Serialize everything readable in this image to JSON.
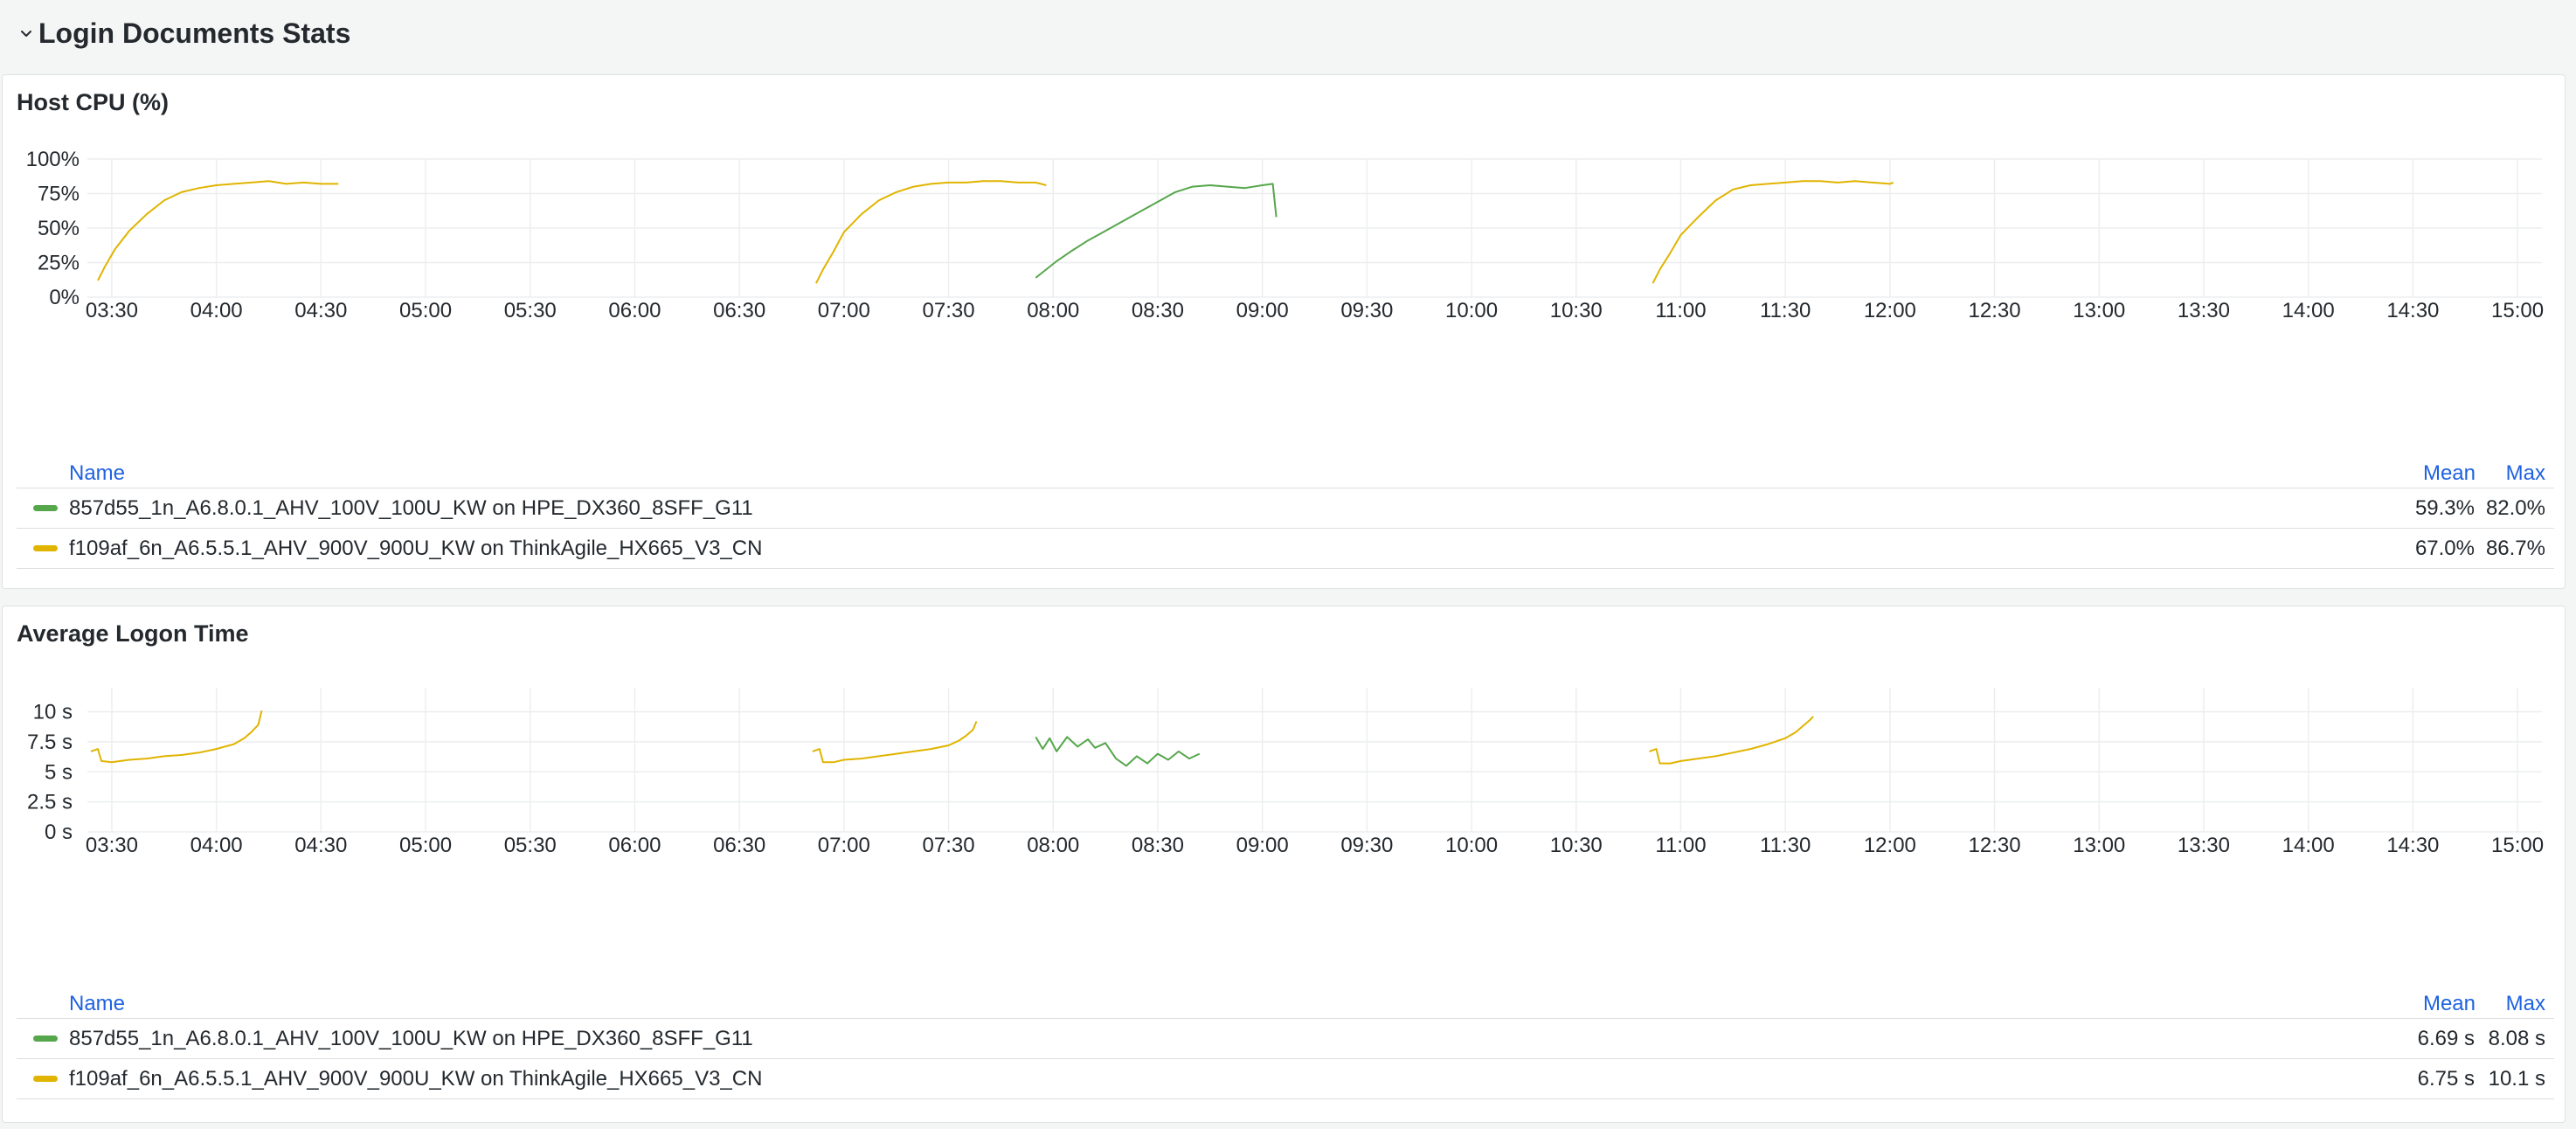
{
  "row": {
    "title": "Login Documents Stats"
  },
  "time_ticks": [
    "03:30",
    "04:00",
    "04:30",
    "05:00",
    "05:30",
    "06:00",
    "06:30",
    "07:00",
    "07:30",
    "08:00",
    "08:30",
    "09:00",
    "09:30",
    "10:00",
    "10:30",
    "11:00",
    "11:30",
    "12:00",
    "12:30",
    "13:00",
    "13:30",
    "14:00",
    "14:30",
    "15:00"
  ],
  "colors": {
    "green": "#56a64b",
    "yellow": "#e0b400",
    "link": "#1f62e0"
  },
  "panels": [
    {
      "title": "Host CPU (%)",
      "legend": {
        "name_header": "Name",
        "mean_header": "Mean",
        "max_header": "Max",
        "rows": [
          {
            "name": "857d55_1n_A6.8.0.1_AHV_100V_100U_KW on HPE_DX360_8SFF_G11",
            "mean": "59.3%",
            "max": "82.0%",
            "color": "#56a64b"
          },
          {
            "name": "f109af_6n_A6.5.5.1_AHV_900V_900U_KW on ThinkAgile_HX665_V3_CN",
            "mean": "67.0%",
            "max": "86.7%",
            "color": "#e0b400"
          }
        ]
      }
    },
    {
      "title": "Average Logon Time",
      "legend": {
        "name_header": "Name",
        "mean_header": "Mean",
        "max_header": "Max",
        "rows": [
          {
            "name": "857d55_1n_A6.8.0.1_AHV_100V_100U_KW on HPE_DX360_8SFF_G11",
            "mean": "6.69 s",
            "max": "8.08 s",
            "color": "#56a64b"
          },
          {
            "name": "f109af_6n_A6.5.5.1_AHV_900V_900U_KW on ThinkAgile_HX665_V3_CN",
            "mean": "6.75 s",
            "max": "10.1 s",
            "color": "#e0b400"
          }
        ]
      }
    }
  ],
  "chart_data": [
    {
      "type": "line",
      "title": "Host CPU (%)",
      "x_unit": "time (HH:MM)",
      "y_ticks": [
        "0%",
        "25%",
        "50%",
        "75%",
        "100%"
      ],
      "ylim": [
        0,
        100
      ],
      "xlim": [
        "03:23",
        "15:07"
      ],
      "series": [
        {
          "name": "857d55_1n_A6.8.0.1_AHV_100V_100U_KW on HPE_DX360_8SFF_G11",
          "color": "#56a64b",
          "segments": [
            {
              "x": [
                "07:55",
                "07:58",
                "08:01",
                "08:05",
                "08:10",
                "08:15",
                "08:20",
                "08:25",
                "08:30",
                "08:35",
                "08:40",
                "08:45",
                "08:50",
                "08:55",
                "09:00",
                "09:03",
                "09:04"
              ],
              "y": [
                14,
                20,
                26,
                33,
                41,
                48,
                55,
                62,
                69,
                76,
                80,
                81,
                80,
                79,
                81,
                82,
                58
              ]
            }
          ]
        },
        {
          "name": "f109af_6n_A6.5.5.1_AHV_900V_900U_KW on ThinkAgile_HX665_V3_CN",
          "color": "#e0b400",
          "segments": [
            {
              "x": [
                "03:26",
                "03:28",
                "03:31",
                "03:35",
                "03:40",
                "03:45",
                "03:50",
                "03:55",
                "04:00",
                "04:05",
                "04:10",
                "04:15",
                "04:20",
                "04:25",
                "04:30",
                "04:35"
              ],
              "y": [
                12,
                22,
                35,
                48,
                60,
                70,
                76,
                79,
                81,
                82,
                83,
                84,
                82,
                83,
                82,
                82
              ]
            },
            {
              "x": [
                "06:52",
                "06:54",
                "06:57",
                "07:00",
                "07:05",
                "07:10",
                "07:15",
                "07:20",
                "07:25",
                "07:30",
                "07:35",
                "07:40",
                "07:45",
                "07:50",
                "07:55",
                "07:58"
              ],
              "y": [
                10,
                20,
                33,
                47,
                60,
                70,
                76,
                80,
                82,
                83,
                83,
                84,
                84,
                83,
                83,
                81
              ]
            },
            {
              "x": [
                "10:52",
                "10:54",
                "10:57",
                "11:00",
                "11:05",
                "11:10",
                "11:15",
                "11:20",
                "11:25",
                "11:30",
                "11:35",
                "11:40",
                "11:45",
                "11:50",
                "11:55",
                "12:00",
                "12:01"
              ],
              "y": [
                10,
                20,
                32,
                45,
                58,
                70,
                78,
                81,
                82,
                83,
                84,
                84,
                83,
                84,
                83,
                82,
                83
              ]
            }
          ]
        }
      ]
    },
    {
      "type": "line",
      "title": "Average Logon Time",
      "x_unit": "time (HH:MM)",
      "y_ticks": [
        "0 s",
        "2.5 s",
        "5 s",
        "7.5 s",
        "10 s"
      ],
      "ylim": [
        0,
        12
      ],
      "xlim": [
        "03:23",
        "15:07"
      ],
      "series": [
        {
          "name": "857d55_1n_A6.8.0.1_AHV_100V_100U_KW on HPE_DX360_8SFF_G11",
          "color": "#56a64b",
          "segments": [
            {
              "x": [
                "07:55",
                "07:57",
                "07:59",
                "08:01",
                "08:04",
                "08:07",
                "08:10",
                "08:12",
                "08:15",
                "08:18",
                "08:21",
                "08:24",
                "08:27",
                "08:30",
                "08:33",
                "08:36",
                "08:39",
                "08:42"
              ],
              "y": [
                7.9,
                6.9,
                7.8,
                6.7,
                7.9,
                7.1,
                7.7,
                7.0,
                7.4,
                6.1,
                5.5,
                6.3,
                5.7,
                6.5,
                6.0,
                6.7,
                6.1,
                6.5
              ]
            }
          ]
        },
        {
          "name": "f109af_6n_A6.5.5.1_AHV_900V_900U_KW on ThinkAgile_HX665_V3_CN",
          "color": "#e0b400",
          "segments": [
            {
              "x": [
                "03:24",
                "03:26",
                "03:27",
                "03:30",
                "03:35",
                "03:40",
                "03:45",
                "03:50",
                "03:55",
                "04:00",
                "04:05",
                "04:08",
                "04:10",
                "04:12",
                "04:13"
              ],
              "y": [
                6.7,
                6.9,
                5.9,
                5.8,
                6.0,
                6.1,
                6.3,
                6.4,
                6.6,
                6.9,
                7.3,
                7.8,
                8.3,
                8.9,
                10.1
              ]
            },
            {
              "x": [
                "06:51",
                "06:53",
                "06:54",
                "06:57",
                "07:00",
                "07:05",
                "07:10",
                "07:15",
                "07:20",
                "07:25",
                "07:30",
                "07:33",
                "07:35",
                "07:37",
                "07:38"
              ],
              "y": [
                6.7,
                6.9,
                5.8,
                5.8,
                6.0,
                6.1,
                6.3,
                6.5,
                6.7,
                6.9,
                7.2,
                7.6,
                8.0,
                8.5,
                9.2
              ]
            },
            {
              "x": [
                "10:51",
                "10:53",
                "10:54",
                "10:57",
                "11:00",
                "11:05",
                "11:10",
                "11:15",
                "11:20",
                "11:25",
                "11:30",
                "11:33",
                "11:35",
                "11:37",
                "11:38"
              ],
              "y": [
                6.7,
                6.9,
                5.7,
                5.7,
                5.9,
                6.1,
                6.3,
                6.6,
                6.9,
                7.3,
                7.8,
                8.3,
                8.8,
                9.3,
                9.6
              ]
            }
          ]
        }
      ]
    }
  ]
}
